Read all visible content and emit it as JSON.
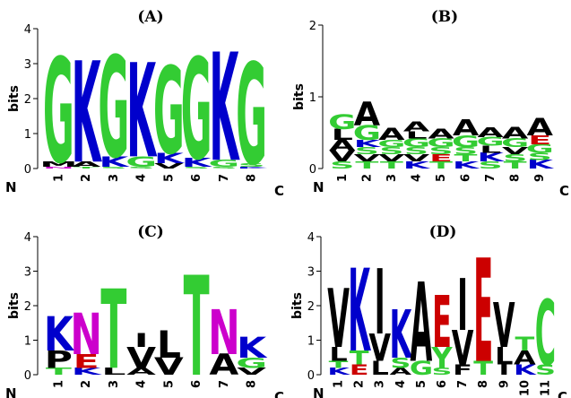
{
  "chart_data": [
    {
      "type": "sequence-logo",
      "title": "(A)",
      "ylabel": "bits",
      "ylim": [
        0,
        4
      ],
      "yticks": [
        "0",
        "1",
        "2",
        "3",
        "4"
      ],
      "n_label": "N",
      "c_label": "C",
      "positions": [
        "1",
        "2",
        "3",
        "4",
        "5",
        "6",
        "7",
        "8"
      ],
      "columns": [
        [
          {
            "l": "N",
            "h": 0.05
          },
          {
            "l": "M",
            "h": 0.15
          },
          {
            "l": "G",
            "h": 3.0
          }
        ],
        [
          {
            "l": "T",
            "h": 0.05
          },
          {
            "l": "A",
            "h": 0.15
          },
          {
            "l": "K",
            "h": 2.9
          }
        ],
        [
          {
            "l": "S",
            "h": 0.05
          },
          {
            "l": "K",
            "h": 0.3
          },
          {
            "l": "G",
            "h": 2.9
          }
        ],
        [
          {
            "l": "S",
            "h": 0.05
          },
          {
            "l": "G",
            "h": 0.3
          },
          {
            "l": "K",
            "h": 2.7
          }
        ],
        [
          {
            "l": "V",
            "h": 0.15
          },
          {
            "l": "K",
            "h": 0.3
          },
          {
            "l": "G",
            "h": 2.5
          }
        ],
        [
          {
            "l": "S",
            "h": 0.05
          },
          {
            "l": "K",
            "h": 0.25
          },
          {
            "l": "G",
            "h": 2.9
          }
        ],
        [
          {
            "l": "S",
            "h": 0.05
          },
          {
            "l": "G",
            "h": 0.2
          },
          {
            "l": "K",
            "h": 3.1
          }
        ],
        [
          {
            "l": "K",
            "h": 0.05
          },
          {
            "l": "S",
            "h": 0.1
          },
          {
            "l": "G",
            "h": 2.9
          }
        ]
      ]
    },
    {
      "type": "sequence-logo",
      "title": "(B)",
      "ylabel": "bits",
      "ylim": [
        0,
        2
      ],
      "yticks": [
        "0",
        "1",
        "2"
      ],
      "n_label": "N",
      "c_label": "C",
      "positions": [
        "1",
        "2",
        "3",
        "4",
        "5",
        "6",
        "7",
        "8",
        "9"
      ],
      "columns": [
        [
          {
            "l": "S",
            "h": 0.1
          },
          {
            "l": "V",
            "h": 0.15
          },
          {
            "l": "A",
            "h": 0.15
          },
          {
            "l": "L",
            "h": 0.15
          },
          {
            "l": "G",
            "h": 0.2
          }
        ],
        [
          {
            "l": "T",
            "h": 0.1
          },
          {
            "l": "V",
            "h": 0.1
          },
          {
            "l": "S",
            "h": 0.1
          },
          {
            "l": "K",
            "h": 0.1
          },
          {
            "l": "G",
            "h": 0.2
          },
          {
            "l": "A",
            "h": 0.33
          }
        ],
        [
          {
            "l": "T",
            "h": 0.1
          },
          {
            "l": "V",
            "h": 0.1
          },
          {
            "l": "S",
            "h": 0.1
          },
          {
            "l": "G",
            "h": 0.1
          },
          {
            "l": "A",
            "h": 0.17
          }
        ],
        [
          {
            "l": "K",
            "h": 0.1
          },
          {
            "l": "V",
            "h": 0.1
          },
          {
            "l": "S",
            "h": 0.1
          },
          {
            "l": "G",
            "h": 0.12
          },
          {
            "l": "L",
            "h": 0.1
          },
          {
            "l": "A",
            "h": 0.14
          }
        ],
        [
          {
            "l": "T",
            "h": 0.1
          },
          {
            "l": "E",
            "h": 0.1
          },
          {
            "l": "S",
            "h": 0.1
          },
          {
            "l": "G",
            "h": 0.12
          },
          {
            "l": "A",
            "h": 0.14
          }
        ],
        [
          {
            "l": "K",
            "h": 0.1
          },
          {
            "l": "T",
            "h": 0.1
          },
          {
            "l": "S",
            "h": 0.1
          },
          {
            "l": "G",
            "h": 0.16
          },
          {
            "l": "A",
            "h": 0.23
          }
        ],
        [
          {
            "l": "S",
            "h": 0.1
          },
          {
            "l": "K",
            "h": 0.12
          },
          {
            "l": "L",
            "h": 0.1
          },
          {
            "l": "G",
            "h": 0.12
          },
          {
            "l": "A",
            "h": 0.14
          }
        ],
        [
          {
            "l": "T",
            "h": 0.1
          },
          {
            "l": "S",
            "h": 0.1
          },
          {
            "l": "V",
            "h": 0.1
          },
          {
            "l": "G",
            "h": 0.12
          },
          {
            "l": "A",
            "h": 0.16
          }
        ],
        [
          {
            "l": "K",
            "h": 0.12
          },
          {
            "l": "S",
            "h": 0.1
          },
          {
            "l": "G",
            "h": 0.12
          },
          {
            "l": "E",
            "h": 0.12
          },
          {
            "l": "A",
            "h": 0.24
          }
        ]
      ]
    },
    {
      "type": "sequence-logo",
      "title": "(C)",
      "ylabel": "bits",
      "ylim": [
        0,
        4
      ],
      "yticks": [
        "0",
        "1",
        "2",
        "3",
        "4"
      ],
      "n_label": "N",
      "c_label": "C",
      "positions": [
        "1",
        "2",
        "3",
        "4",
        "5",
        "6",
        "7",
        "8"
      ],
      "columns": [
        [
          {
            "l": "T",
            "h": 0.2
          },
          {
            "l": "P",
            "h": 0.5
          },
          {
            "l": "K",
            "h": 1.0
          }
        ],
        [
          {
            "l": "K",
            "h": 0.2
          },
          {
            "l": "E",
            "h": 0.4
          },
          {
            "l": "N",
            "h": 1.2
          }
        ],
        [
          {
            "l": "L",
            "h": 0.2
          },
          {
            "l": "T",
            "h": 2.3
          }
        ],
        [
          {
            "l": "A",
            "h": 0.2
          },
          {
            "l": "V",
            "h": 0.6
          },
          {
            "l": "I",
            "h": 0.4
          }
        ],
        [
          {
            "l": "V",
            "h": 0.5
          },
          {
            "l": "L",
            "h": 0.8
          }
        ],
        [
          {
            "l": "T",
            "h": 2.9
          }
        ],
        [
          {
            "l": "A",
            "h": 0.6
          },
          {
            "l": "N",
            "h": 1.3
          }
        ],
        [
          {
            "l": "V",
            "h": 0.2
          },
          {
            "l": "G",
            "h": 0.3
          },
          {
            "l": "K",
            "h": 0.6
          }
        ]
      ]
    },
    {
      "type": "sequence-logo",
      "title": "(D)",
      "ylabel": "bits",
      "ylim": [
        0,
        4
      ],
      "yticks": [
        "0",
        "1",
        "2",
        "3",
        "4"
      ],
      "n_label": "N",
      "c_label": "C",
      "positions": [
        "1",
        "2",
        "3",
        "4",
        "5",
        "6",
        "7",
        "8",
        "9",
        "10",
        "11"
      ],
      "columns": [
        [
          {
            "l": "K",
            "h": 0.2
          },
          {
            "l": "T",
            "h": 0.2
          },
          {
            "l": "L",
            "h": 0.4
          },
          {
            "l": "V",
            "h": 1.7
          }
        ],
        [
          {
            "l": "E",
            "h": 0.3
          },
          {
            "l": "T",
            "h": 0.4
          },
          {
            "l": "K",
            "h": 2.4
          }
        ],
        [
          {
            "l": "L",
            "h": 0.4
          },
          {
            "l": "V",
            "h": 0.8
          },
          {
            "l": "I",
            "h": 1.9
          }
        ],
        [
          {
            "l": "A",
            "h": 0.2
          },
          {
            "l": "S",
            "h": 0.3
          },
          {
            "l": "K",
            "h": 1.4
          }
        ],
        [
          {
            "l": "G",
            "h": 0.4
          },
          {
            "l": "A",
            "h": 2.3
          }
        ],
        [
          {
            "l": "S",
            "h": 0.2
          },
          {
            "l": "Y",
            "h": 0.6
          },
          {
            "l": "E",
            "h": 1.5
          }
        ],
        [
          {
            "l": "F",
            "h": 0.3
          },
          {
            "l": "V",
            "h": 1.0
          },
          {
            "l": "I",
            "h": 1.5
          }
        ],
        [
          {
            "l": "T",
            "h": 0.4
          },
          {
            "l": "E",
            "h": 3.0
          }
        ],
        [
          {
            "l": "I",
            "h": 0.3
          },
          {
            "l": "L",
            "h": 0.5
          },
          {
            "l": "V",
            "h": 1.3
          }
        ],
        [
          {
            "l": "K",
            "h": 0.3
          },
          {
            "l": "A",
            "h": 0.4
          },
          {
            "l": "T",
            "h": 0.4
          }
        ],
        [
          {
            "l": "S",
            "h": 0.3
          },
          {
            "l": "C",
            "h": 1.9
          }
        ]
      ]
    }
  ],
  "letter_colors": {
    "G": "#33cc33",
    "S": "#33cc33",
    "T": "#33cc33",
    "Y": "#33cc33",
    "C": "#33cc33",
    "K": "#0000cc",
    "R": "#0000cc",
    "H": "#0000cc",
    "N": "#cc00cc",
    "Q": "#cc00cc",
    "D": "#cc0000",
    "E": "#cc0000",
    "A": "#000000",
    "V": "#000000",
    "L": "#000000",
    "I": "#000000",
    "P": "#000000",
    "M": "#000000",
    "F": "#000000",
    "W": "#000000"
  }
}
